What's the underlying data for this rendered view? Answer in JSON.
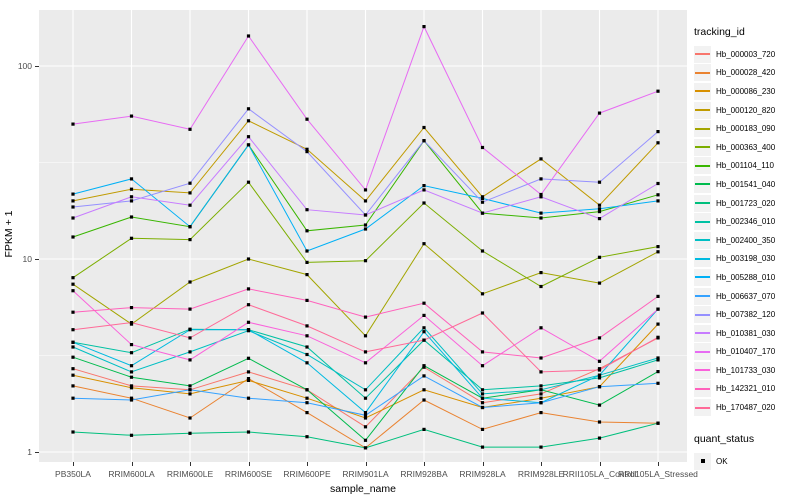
{
  "chart_data": {
    "type": "line",
    "title": "",
    "xlabel": "sample_name",
    "ylabel": "FPKM + 1",
    "y_scale": "log10",
    "ylim": [
      0.89,
      195
    ],
    "y_major_ticks": [
      1,
      10,
      100
    ],
    "y_minor_gridlines": [
      3.162,
      31.623
    ],
    "grid": "white major+minor gridlines on grey panel",
    "legend_position": "right",
    "point_shape": "filled-square",
    "point_color": "#000000",
    "categories": [
      "PB350LA",
      "RRIM600LA",
      "RRIM600LE",
      "RRIM600SE",
      "RRIM600PE",
      "RRIM901LA",
      "RRIM928BA",
      "RRIM928LA",
      "RRIM928LE",
      "RRII105LA_Control",
      "RRII105LA_Stressed"
    ],
    "series": [
      {
        "name": "Hb_000003_720",
        "color": "#F8766D",
        "values": [
          2.7,
          2.2,
          2.1,
          2.6,
          2.1,
          1.35,
          2.75,
          1.8,
          2.0,
          2.7,
          3.9
        ]
      },
      {
        "name": "Hb_000028_420",
        "color": "#EA8331",
        "values": [
          2.2,
          1.9,
          1.5,
          2.4,
          1.6,
          1.05,
          1.86,
          1.31,
          1.6,
          1.43,
          1.41
        ]
      },
      {
        "name": "Hb_000086_230",
        "color": "#D89000",
        "values": [
          2.5,
          2.15,
          2.0,
          2.35,
          1.9,
          1.5,
          2.1,
          1.7,
          1.9,
          2.18,
          4.6
        ]
      },
      {
        "name": "Hb_000120_820",
        "color": "#C09B00",
        "values": [
          20,
          23,
          22,
          52,
          37,
          20,
          48,
          21,
          33,
          19,
          40
        ]
      },
      {
        "name": "Hb_000183_090",
        "color": "#A3A500",
        "values": [
          7.4,
          4.6,
          7.6,
          10,
          8.3,
          4.0,
          12,
          6.6,
          8.5,
          7.5,
          10.9
        ]
      },
      {
        "name": "Hb_000363_400",
        "color": "#7CAE00",
        "values": [
          8.0,
          12.8,
          12.6,
          25,
          9.6,
          9.8,
          19.5,
          11,
          7.2,
          10.2,
          11.6
        ]
      },
      {
        "name": "Hb_001104_110",
        "color": "#39B600",
        "values": [
          13,
          16.5,
          14.7,
          39,
          14,
          15,
          41,
          17.3,
          16.3,
          17.6,
          21.5
        ]
      },
      {
        "name": "Hb_001541_040",
        "color": "#00BB4E",
        "values": [
          3.1,
          2.44,
          2.2,
          3.06,
          2.1,
          1.15,
          2.8,
          1.9,
          2.1,
          1.75,
          2.61
        ]
      },
      {
        "name": "Hb_001723_020",
        "color": "#00BF7D",
        "values": [
          1.27,
          1.22,
          1.25,
          1.27,
          1.2,
          1.05,
          1.31,
          1.06,
          1.06,
          1.18,
          1.41
        ]
      },
      {
        "name": "Hb_002346_010",
        "color": "#00C1A3",
        "values": [
          3.7,
          3.27,
          4.33,
          4.3,
          3.5,
          1.9,
          3.8,
          2.1,
          2.2,
          2.42,
          3.0
        ]
      },
      {
        "name": "Hb_002400_350",
        "color": "#00BFC4",
        "values": [
          3.5,
          2.6,
          3.3,
          4.25,
          3.2,
          2.1,
          4.4,
          2.0,
          2.1,
          2.5,
          3.07
        ]
      },
      {
        "name": "Hb_003198_030",
        "color": "#00BAE0",
        "values": [
          3.7,
          2.8,
          4.3,
          4.3,
          2.9,
          1.6,
          4.2,
          1.9,
          1.8,
          2.5,
          5.5
        ]
      },
      {
        "name": "Hb_005288_010",
        "color": "#00B0F6",
        "values": [
          21.7,
          26,
          14.7,
          39,
          11,
          14.3,
          24,
          20.6,
          17.3,
          18.2,
          20
        ]
      },
      {
        "name": "Hb_006637_070",
        "color": "#35A2FF",
        "values": [
          1.9,
          1.86,
          2.1,
          1.9,
          1.8,
          1.55,
          2.48,
          1.7,
          1.8,
          2.18,
          2.27
        ]
      },
      {
        "name": "Hb_007382_120",
        "color": "#9590FF",
        "values": [
          18.6,
          20,
          24.7,
          60,
          36,
          16.9,
          41,
          19.7,
          26,
          25,
          45.7
        ]
      },
      {
        "name": "Hb_010381_030",
        "color": "#C77CFF",
        "values": [
          16.3,
          21,
          19,
          43,
          18,
          16.9,
          22.8,
          17.3,
          21,
          16.2,
          24.6
        ]
      },
      {
        "name": "Hb_010407_170",
        "color": "#E76BF3",
        "values": [
          50,
          55,
          47,
          143,
          53,
          22.8,
          160,
          37.8,
          21.6,
          57,
          74
        ]
      },
      {
        "name": "Hb_101733_030",
        "color": "#FA62DB",
        "values": [
          6.85,
          3.6,
          3.0,
          4.7,
          4.0,
          2.9,
          5.1,
          2.8,
          4.4,
          2.95,
          5.5
        ]
      },
      {
        "name": "Hb_142321_010",
        "color": "#FF62BC",
        "values": [
          5.3,
          5.6,
          5.5,
          7.0,
          6.1,
          5.0,
          5.9,
          3.3,
          3.07,
          3.9,
          6.4
        ]
      },
      {
        "name": "Hb_170487_020",
        "color": "#FF6A98",
        "values": [
          4.3,
          4.68,
          3.9,
          5.8,
          4.5,
          3.3,
          3.8,
          5.25,
          2.6,
          2.66,
          3.93
        ]
      }
    ],
    "legend": {
      "series_title": "tracking_id",
      "quant_title": "quant_status",
      "quant_items": [
        {
          "label": "OK",
          "shape": "square",
          "color": "#000000"
        }
      ]
    }
  },
  "panel": {
    "bg": "#EBEBEB",
    "grid_color": "#FFFFFF",
    "tick_color": "#333333",
    "tick_label_color": "#4D4D4D"
  }
}
